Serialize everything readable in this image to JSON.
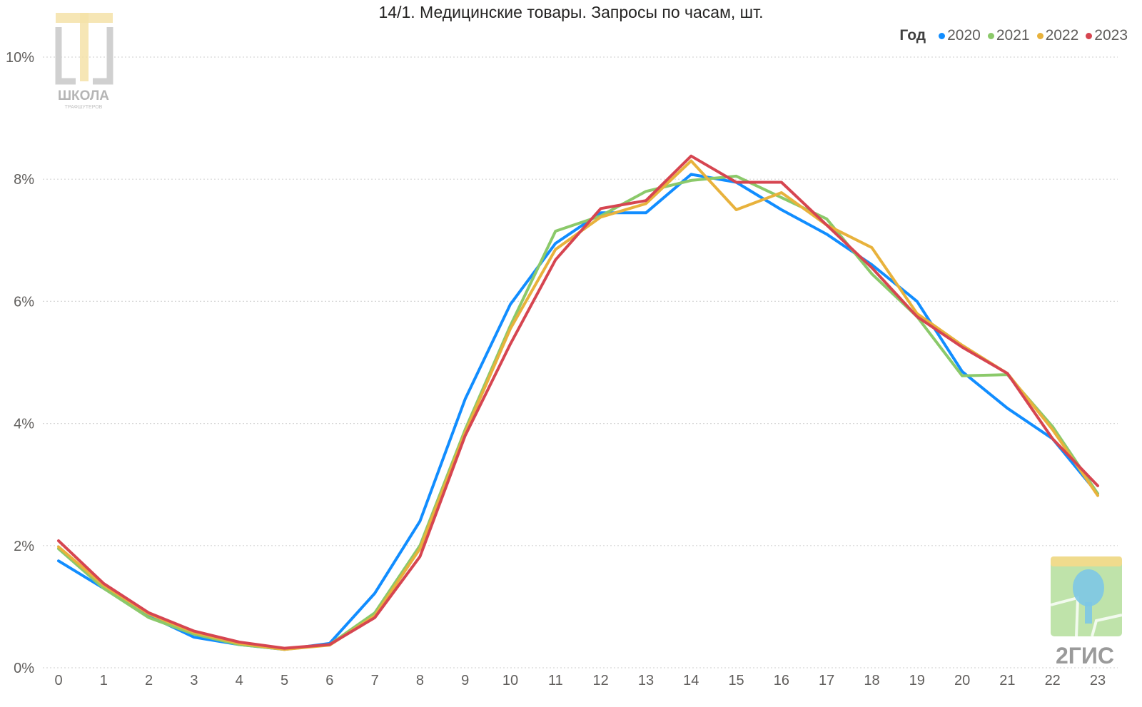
{
  "title": "14/1. Медицинские товары. Запросы по часам, шт.",
  "legend": {
    "title": "Год",
    "items": [
      {
        "label": "2020",
        "color": "#118dff"
      },
      {
        "label": "2021",
        "color": "#8bc96a"
      },
      {
        "label": "2022",
        "color": "#e8b23c"
      },
      {
        "label": "2023",
        "color": "#d64550"
      }
    ]
  },
  "logos": {
    "school": {
      "text": "ШКОЛА",
      "subtext": "ТРАФШУТЕРОВ"
    },
    "brand": {
      "text": "2ГИС"
    }
  },
  "chart_data": {
    "type": "line",
    "title": "14/1. Медицинские товары. Запросы по часам, шт.",
    "xlabel": "",
    "ylabel": "",
    "x": [
      0,
      1,
      2,
      3,
      4,
      5,
      6,
      7,
      8,
      9,
      10,
      11,
      12,
      13,
      14,
      15,
      16,
      17,
      18,
      19,
      20,
      21,
      22,
      23
    ],
    "y_ticks": [
      "0%",
      "2%",
      "4%",
      "6%",
      "8%",
      "10%"
    ],
    "ylim": [
      0,
      10
    ],
    "y_unit": "%",
    "grid": true,
    "legend_position": "top-right",
    "series": [
      {
        "name": "2020",
        "color": "#118dff",
        "values": [
          1.75,
          1.3,
          0.85,
          0.5,
          0.38,
          0.3,
          0.4,
          1.22,
          2.4,
          4.4,
          5.95,
          6.95,
          7.45,
          7.45,
          8.08,
          7.95,
          7.5,
          7.1,
          6.6,
          6.0,
          4.85,
          4.25,
          3.75,
          2.85
        ]
      },
      {
        "name": "2021",
        "color": "#8bc96a",
        "values": [
          1.95,
          1.3,
          0.82,
          0.55,
          0.38,
          0.3,
          0.38,
          0.9,
          2.0,
          3.9,
          5.6,
          7.15,
          7.4,
          7.8,
          7.98,
          8.05,
          7.7,
          7.35,
          6.45,
          5.75,
          4.78,
          4.8,
          3.95,
          2.85
        ]
      },
      {
        "name": "2022",
        "color": "#e8b23c",
        "values": [
          1.98,
          1.35,
          0.88,
          0.58,
          0.4,
          0.3,
          0.37,
          0.85,
          1.95,
          3.85,
          5.55,
          6.85,
          7.38,
          7.6,
          8.3,
          7.5,
          7.78,
          7.25,
          6.88,
          5.8,
          5.28,
          4.82,
          3.9,
          2.82
        ]
      },
      {
        "name": "2023",
        "color": "#d64550",
        "values": [
          2.08,
          1.38,
          0.9,
          0.6,
          0.42,
          0.32,
          0.38,
          0.82,
          1.82,
          3.8,
          5.3,
          6.68,
          7.52,
          7.65,
          8.38,
          7.95,
          7.95,
          7.25,
          6.55,
          5.75,
          5.25,
          4.82,
          3.75,
          2.98
        ]
      }
    ]
  }
}
